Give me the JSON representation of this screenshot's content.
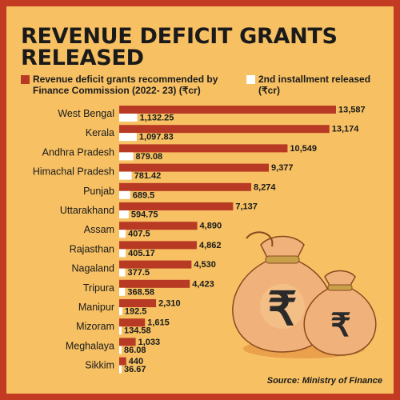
{
  "title": "REVENUE DEFICIT GRANTS RELEASED",
  "legend": {
    "recommended": "Revenue deficit grants recommended by Finance Commission (2022- 23) (₹cr)",
    "installment": "2nd installment released (₹cr)"
  },
  "source": "Source: Ministry of Finance",
  "colors": {
    "background": "#f6c063",
    "border": "#c23b22",
    "recommended": "#b83a24",
    "installment": "#ffffff",
    "bag": "#f0b27a"
  },
  "decoration": {
    "icon": "money-bag-rupee-icon",
    "glyph": "₹"
  },
  "chart_data": {
    "type": "bar",
    "orientation": "horizontal",
    "categories": [
      "West Bengal",
      "Kerala",
      "Andhra Pradesh",
      "Himachal Pradesh",
      "Punjab",
      "Uttarakhand",
      "Assam",
      "Rajasthan",
      "Nagaland",
      "Tripura",
      "Manipur",
      "Mizoram",
      "Meghalaya",
      "Sikkim"
    ],
    "series": [
      {
        "name": "Revenue deficit grants recommended by Finance Commission (2022- 23) (₹cr)",
        "values": [
          13587,
          13174,
          10549,
          9377,
          8274,
          7137,
          4890,
          4862,
          4530,
          4423,
          2310,
          1615,
          1033,
          440
        ],
        "labels": [
          "13,587",
          "13,174",
          "10,549",
          "9,377",
          "8,274",
          "7,137",
          "4,890",
          "4,862",
          "4,530",
          "4,423",
          "2,310",
          "1,615",
          "1,033",
          "440"
        ]
      },
      {
        "name": "2nd installment released (₹cr)",
        "values": [
          1132.25,
          1097.83,
          879.08,
          781.42,
          689.5,
          594.75,
          407.5,
          405.17,
          377.5,
          368.58,
          192.5,
          134.58,
          86.08,
          36.67
        ],
        "labels": [
          "1,132.25",
          "1,097.83",
          "879.08",
          "781.42",
          "689.5",
          "594.75",
          "407.5",
          "405.17",
          "377.5",
          "368.58",
          "192.5",
          "134.58",
          "86.08",
          "36.67"
        ]
      }
    ],
    "xlim": [
      0,
      13587
    ],
    "grid": false,
    "legend_position": "top"
  }
}
